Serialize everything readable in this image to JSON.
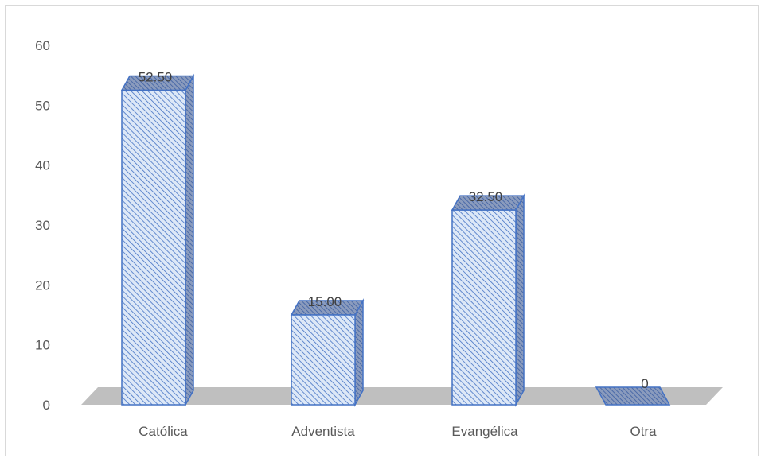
{
  "chart_data": {
    "type": "bar",
    "style": "3d-column",
    "categories": [
      "Católica",
      "Adventista",
      "Evangélica",
      "Otra"
    ],
    "values": [
      52.5,
      15.0,
      32.5,
      0
    ],
    "data_labels": [
      "52.50",
      "15.00",
      "32.50",
      "0"
    ],
    "yticks": [
      "0",
      "10",
      "20",
      "30",
      "40",
      "50",
      "60"
    ],
    "ylim": [
      0,
      60
    ],
    "grid": false,
    "legend": "none",
    "colors": {
      "bar_fill": "#dde8f7",
      "bar_hatch": "#4472c4",
      "bar_border": "#4472c4",
      "floor": "#bfbfbf",
      "side_dark": "#7f93b8"
    }
  }
}
